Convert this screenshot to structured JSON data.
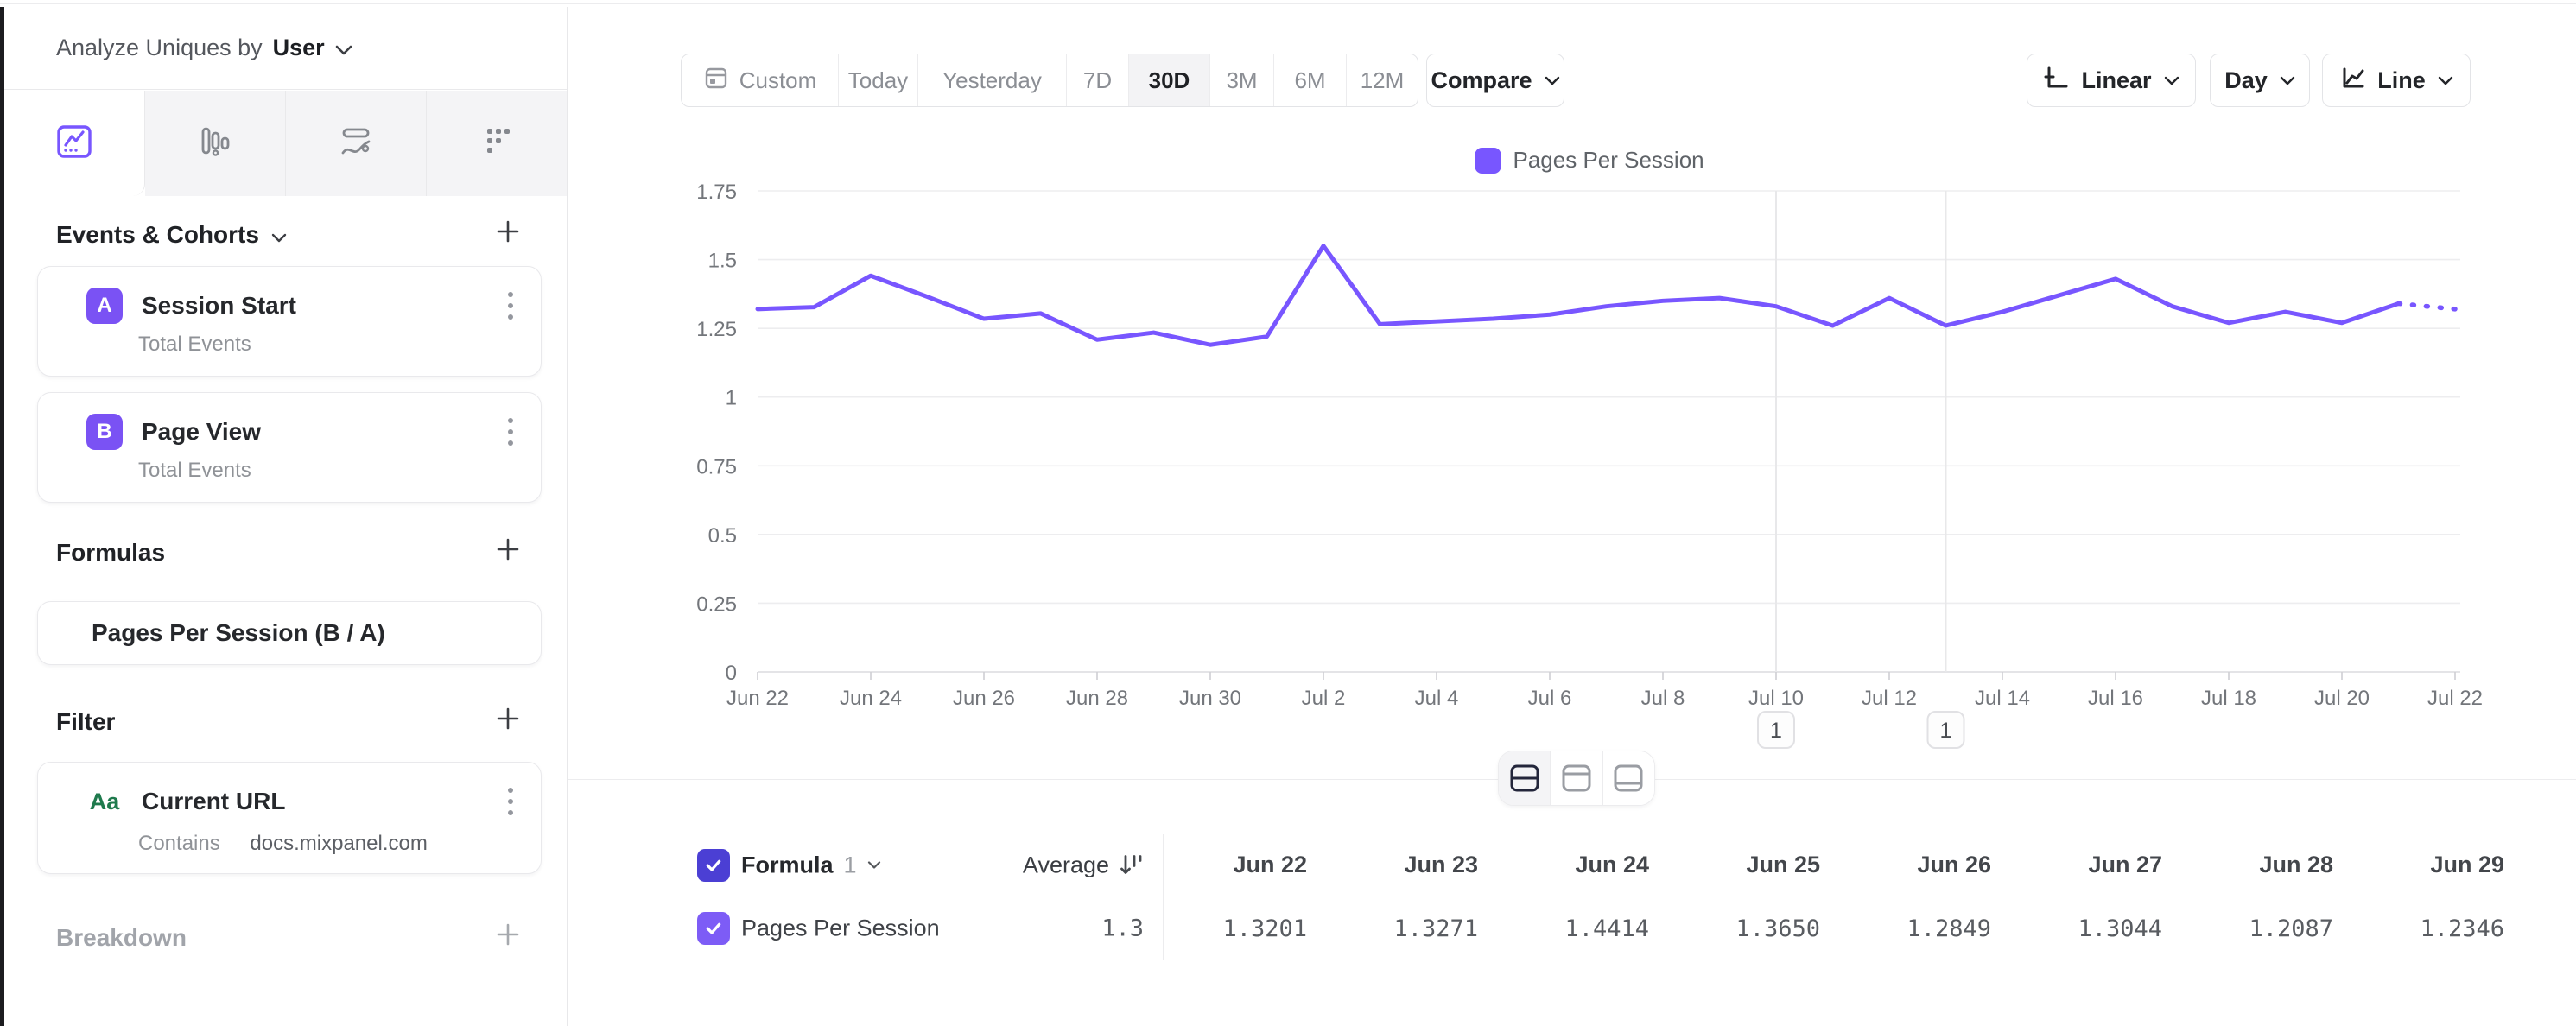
{
  "sidebar": {
    "analyze_prefix": "Analyze Uniques by",
    "analyze_value": "User",
    "tabs": [
      {
        "icon": "insights-line-icon",
        "active": true
      },
      {
        "icon": "funnel-bars-icon",
        "active": false
      },
      {
        "icon": "retention-curve-icon",
        "active": false
      },
      {
        "icon": "flows-dots-icon",
        "active": false
      }
    ],
    "events": {
      "title": "Events & Cohorts",
      "items": [
        {
          "letter": "A",
          "title": "Session Start",
          "subtitle": "Total Events"
        },
        {
          "letter": "B",
          "title": "Page View",
          "subtitle": "Total Events"
        }
      ]
    },
    "formulas": {
      "title": "Formulas",
      "items": [
        {
          "title": "Pages Per Session (B / A)"
        }
      ]
    },
    "filter": {
      "title": "Filter",
      "items": [
        {
          "badge": "Aa",
          "title": "Current URL",
          "operator": "Contains",
          "value": "docs.mixpanel.com"
        }
      ]
    },
    "breakdown": {
      "title": "Breakdown"
    }
  },
  "toolbar": {
    "date_ranges": [
      "Custom",
      "Today",
      "Yesterday",
      "7D",
      "30D",
      "3M",
      "6M",
      "12M"
    ],
    "selected_range": "30D",
    "compare_label": "Compare",
    "scale_label": "Linear",
    "interval_label": "Day",
    "chart_type_label": "Line"
  },
  "chart_data": {
    "type": "line",
    "legend": {
      "label": "Pages Per Session",
      "position": "top-center"
    },
    "ylim": [
      0,
      1.75
    ],
    "y_tick_step": 0.25,
    "y_tick_labels": [
      "0",
      "0.25",
      "0.5",
      "0.75",
      "1",
      "1.25",
      "1.5",
      "1.75"
    ],
    "x_tick_every": 2,
    "grid": "horizontal",
    "x": [
      "Jun 22",
      "Jun 23",
      "Jun 24",
      "Jun 25",
      "Jun 26",
      "Jun 27",
      "Jun 28",
      "Jun 29",
      "Jun 30",
      "Jul 1",
      "Jul 2",
      "Jul 3",
      "Jul 4",
      "Jul 5",
      "Jul 6",
      "Jul 7",
      "Jul 8",
      "Jul 9",
      "Jul 10",
      "Jul 11",
      "Jul 12",
      "Jul 13",
      "Jul 14",
      "Jul 15",
      "Jul 16",
      "Jul 17",
      "Jul 18",
      "Jul 19",
      "Jul 20",
      "Jul 21",
      "Jul 22"
    ],
    "series": [
      {
        "name": "Pages Per Session",
        "color": "#7856FF",
        "dotted_tail_points": 1,
        "values": [
          1.3201,
          1.3271,
          1.4414,
          1.365,
          1.2849,
          1.3044,
          1.2087,
          1.2346,
          1.19,
          1.22,
          1.55,
          1.265,
          1.275,
          1.285,
          1.3,
          1.33,
          1.35,
          1.36,
          1.33,
          1.26,
          1.36,
          1.26,
          1.31,
          1.37,
          1.43,
          1.33,
          1.27,
          1.31,
          1.27,
          1.34,
          1.32
        ]
      }
    ],
    "annotations": [
      {
        "x_label": "Jul 10",
        "badge": "1"
      },
      {
        "x_label": "Jul 13",
        "badge": "1"
      }
    ]
  },
  "table": {
    "formula_label": "Formula",
    "formula_number": "1",
    "average_label": "Average",
    "columns": [
      "Jun 22",
      "Jun 23",
      "Jun 24",
      "Jun 25",
      "Jun 26",
      "Jun 27",
      "Jun 28",
      "Jun 29"
    ],
    "rows": [
      {
        "name": "Pages Per Session",
        "checked": true,
        "average": "1.3",
        "values": [
          "1.3201",
          "1.3271",
          "1.4414",
          "1.3650",
          "1.2849",
          "1.3044",
          "1.2087",
          "1.2346"
        ]
      }
    ]
  },
  "colors": {
    "accent": "#7856FF",
    "series_line": "#7856FF",
    "event_badge": "#7A52F4",
    "checkbox_header": "#4B3FD4",
    "checkbox_row": "#7D5CF6",
    "filter_badge_green": "#1F7A4D",
    "selected_range_bg": "#F3F3F5",
    "grid_line": "#EDEDEF"
  }
}
